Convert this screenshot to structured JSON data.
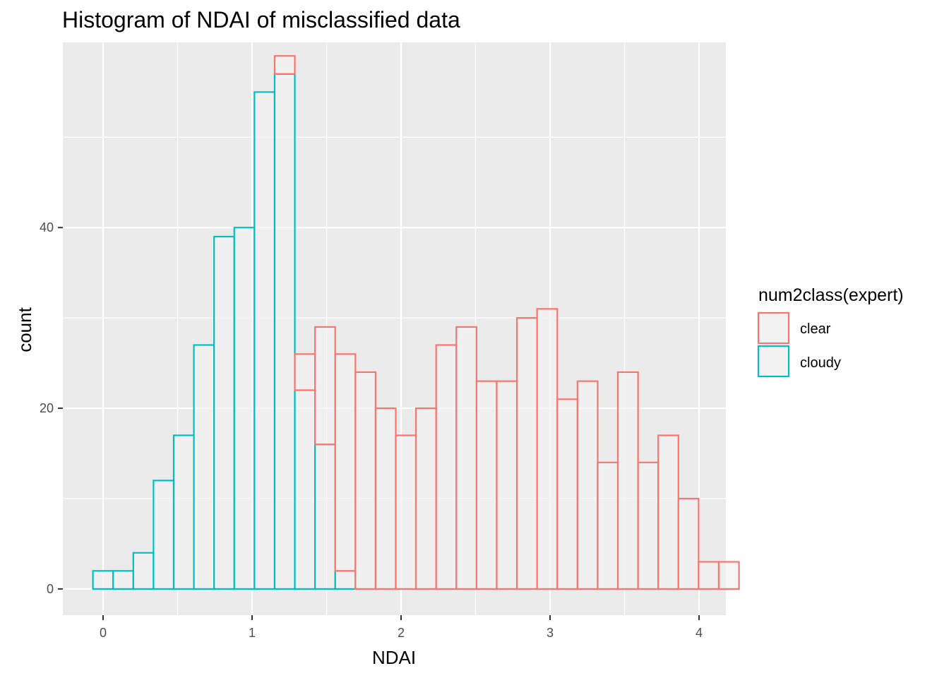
{
  "chart_data": {
    "type": "bar",
    "subtype": "histogram",
    "title": "Histogram of NDAI of misclassified data",
    "xlabel": "NDAI",
    "ylabel": "count",
    "xlim": [
      -0.27,
      4.18
    ],
    "ylim": [
      -2.9,
      60.5
    ],
    "x_ticks": [
      0,
      1,
      2,
      3,
      4
    ],
    "y_ticks": [
      0,
      20,
      40
    ],
    "grid": true,
    "bin_start": -0.068,
    "bin_width": 0.1355,
    "legend": {
      "title": "num2class(expert)",
      "placement": "right"
    },
    "series": [
      {
        "name": "clear",
        "color": "#F8766D",
        "counts": [
          0,
          0,
          0,
          0,
          0,
          0,
          0,
          0,
          0,
          2,
          4,
          13,
          24,
          24,
          20,
          17,
          20,
          27,
          29,
          23,
          23,
          30,
          31,
          21,
          23,
          14,
          24,
          14,
          17,
          10,
          3,
          3
        ]
      },
      {
        "name": "cloudy",
        "color": "#00BFC4",
        "counts": [
          2,
          2,
          4,
          12,
          17,
          27,
          39,
          40,
          55,
          57,
          22,
          16,
          2,
          0,
          0,
          0,
          0,
          0,
          0,
          0,
          0,
          0,
          0,
          0,
          0,
          0,
          0,
          0,
          0,
          0,
          0,
          0
        ]
      }
    ],
    "colors": {
      "panel": "#EBEBEB",
      "grid": "#FFFFFF",
      "bar_fill": "#F2F2F2"
    }
  }
}
